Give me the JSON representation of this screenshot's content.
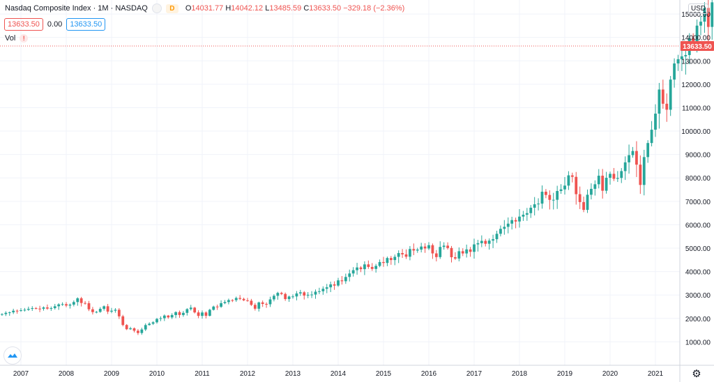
{
  "header": {
    "symbol": "Nasdaq Composite Index · 1M · NASDAQ",
    "badge": "D",
    "ohlc": {
      "o_label": "O",
      "o": "14031.77",
      "h_label": "H",
      "h": "14042.12",
      "l_label": "L",
      "l": "13485.59",
      "c_label": "C",
      "c": "13633.50",
      "change": "−329.18 (−2.36%)"
    }
  },
  "values": {
    "price": "13633.50",
    "zero": "0.00",
    "price2": "13633.50"
  },
  "vol_label": "Vol",
  "currency": "USD",
  "colors": {
    "up": "#26a69a",
    "down": "#ef5350",
    "grid": "#f0f3fa",
    "last_line": "#ef5350"
  },
  "icons": {
    "logo": "tradingview-cloud-icon",
    "settings": "gear-icon",
    "warning": "exclamation-icon"
  },
  "chart_data": {
    "type": "candlestick",
    "interval": "1M",
    "ylim": [
      0,
      15300
    ],
    "last_price": 13633.5,
    "last_price_label": "13633.50",
    "y_ticks": [
      1000,
      2000,
      3000,
      4000,
      5000,
      6000,
      7000,
      8000,
      9000,
      10000,
      11000,
      12000,
      13000,
      14000,
      15000
    ],
    "y_tick_labels": [
      "1000.00",
      "2000.00",
      "3000.00",
      "4000.00",
      "5000.00",
      "6000.00",
      "7000.00",
      "8000.00",
      "9000.00",
      "10000.00",
      "11000.00",
      "12000.00",
      "13000.00",
      "14000.00",
      "15000.00"
    ],
    "x_ticks": [
      2007,
      2008,
      2009,
      2010,
      2011,
      2012,
      2013,
      2014,
      2015,
      2016,
      2017,
      2018,
      2019,
      2020,
      2021
    ],
    "x_tick_labels": [
      "2007",
      "2008",
      "2009",
      "2010",
      "2011",
      "2012",
      "2013",
      "2014",
      "2015",
      "2016",
      "2017",
      "2018",
      "2019",
      "2020",
      "2021"
    ],
    "x_start": 2006.5,
    "closes": [
      2165,
      2185,
      2240,
      2260,
      2330,
      2320,
      2350,
      2370,
      2410,
      2440,
      2420,
      2415,
      2470,
      2420,
      2440,
      2520,
      2600,
      2610,
      2550,
      2590,
      2700,
      2860,
      2660,
      2650,
      2390,
      2270,
      2280,
      2410,
      2520,
      2290,
      2330,
      2370,
      2090,
      1720,
      1540,
      1577,
      1476,
      1378,
      1528,
      1717,
      1774,
      1835,
      1979,
      2009,
      2122,
      2045,
      2145,
      2269,
      2147,
      2238,
      2397,
      2461,
      2257,
      2109,
      2254,
      2114,
      2368,
      2507,
      2498,
      2652,
      2700,
      2782,
      2781,
      2873,
      2835,
      2774,
      2756,
      2579,
      2415,
      2684,
      2620,
      2605,
      2813,
      2966,
      3091,
      3046,
      2827,
      2935,
      2939,
      3067,
      3116,
      2977,
      3010,
      3020,
      3142,
      3160,
      3267,
      3329,
      3455,
      3403,
      3626,
      3589,
      3771,
      3920,
      4060,
      4177,
      4104,
      4308,
      4199,
      4114,
      4243,
      4408,
      4369,
      4580,
      4493,
      4630,
      4791,
      4736,
      4635,
      4964,
      4900,
      4941,
      5070,
      4987,
      5128,
      4777,
      4620,
      5053,
      5108,
      5007,
      4614,
      4558,
      4870,
      4775,
      4948,
      4843,
      5162,
      5213,
      5312,
      5189,
      5324,
      5383,
      5615,
      5825,
      5912,
      6048,
      6199,
      6140,
      6348,
      6429,
      6496,
      6728,
      6874,
      6903,
      7411,
      7273,
      7063,
      7066,
      7442,
      7510,
      7672,
      8110,
      8046,
      7306,
      6968,
      6635,
      7282,
      7533,
      7729,
      8095,
      7453,
      8006,
      8175,
      7963,
      7999,
      8292,
      8665,
      8972,
      9150,
      8567,
      7700,
      8890,
      9490,
      10059,
      10745,
      11775,
      11168,
      10912,
      12199,
      12888,
      13070,
      13192,
      13247,
      13963,
      13748,
      14504,
      14673,
      15259,
      14448,
      15498,
      15538,
      13633.5
    ]
  }
}
